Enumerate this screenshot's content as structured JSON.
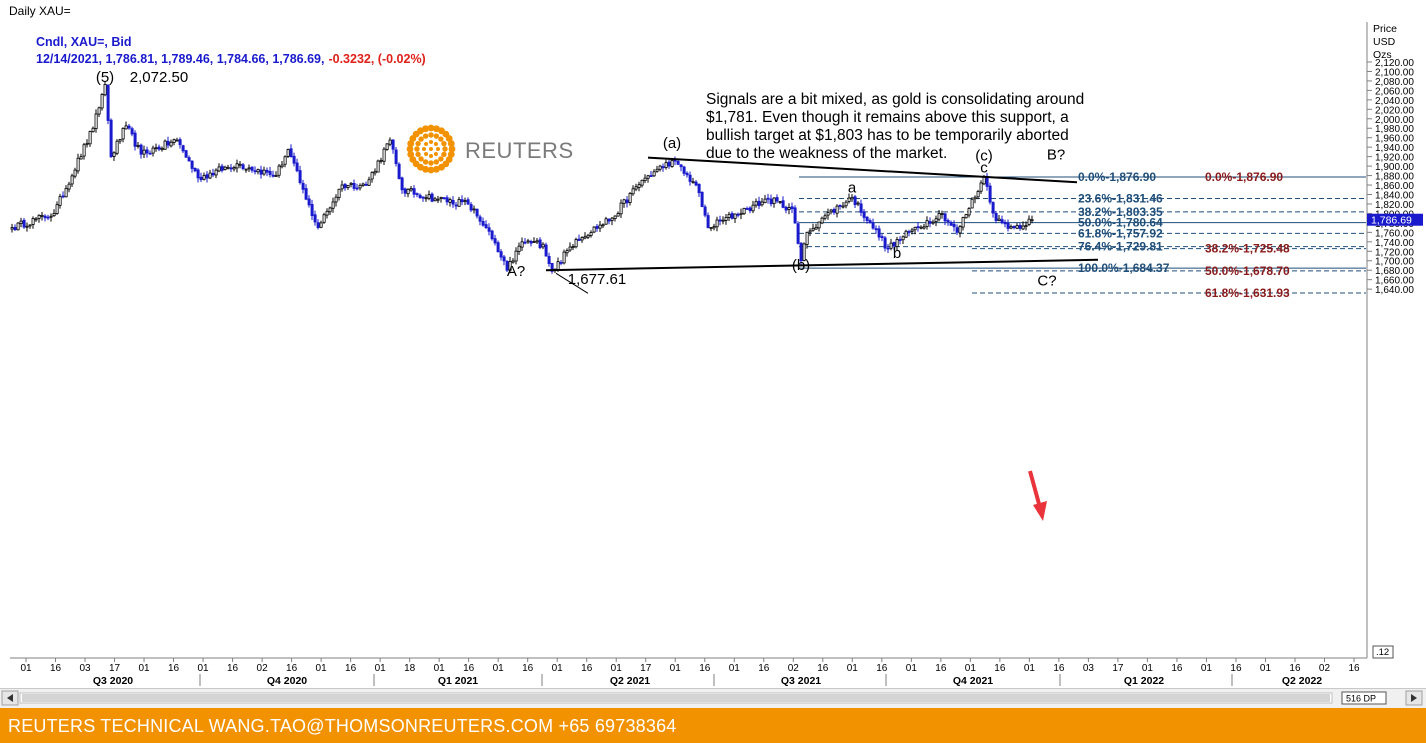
{
  "window": {
    "title": "Daily XAU="
  },
  "header": {
    "line1": "Cndl, XAU=, Bid",
    "line2_values": "12/14/2021, 1,786.81, 1,789.46, 1,784.66, 1,786.69,",
    "line2_change": "-0.3232, (-0.02%)"
  },
  "logo": {
    "text": "REUTERS"
  },
  "commentary": [
    "Signals are a bit mixed, as gold is consolidating around",
    "$1,781. Even though it remains above this support, a",
    "bullish target at $1,803 has to be temporarily aborted",
    "due to the weakness of the market."
  ],
  "axis": {
    "header": [
      "Price",
      "USD",
      "Ozs"
    ],
    "current_price_tag": "1,786.69",
    "zoom_tag": ".12",
    "scroll_tag": "516 DP"
  },
  "footer": {
    "text": "REUTERS TECHNICAL  WANG.TAO@THOMSONREUTERS.COM  +65 69738364"
  },
  "colors": {
    "up": "#000000",
    "down": "#1a1acd",
    "fib_blue": "#1f4e79",
    "fib_red": "#8b1a1a",
    "footer": "#f39200",
    "arrow": "#e8343a"
  },
  "chart_data": {
    "type": "candlestick",
    "instrument": "XAU=",
    "period": "Daily",
    "ylim": [
      1620,
      2130
    ],
    "y_ticks": [
      1640,
      1660,
      1680,
      1700,
      1720,
      1740,
      1760,
      1780,
      1800,
      1820,
      1840,
      1860,
      1880,
      1900,
      1920,
      1940,
      1960,
      1980,
      2000,
      2020,
      2040,
      2060,
      2080,
      2100,
      2120
    ],
    "y_tick_labels": [
      "1,640.00",
      "1,660.00",
      "1,680.00",
      "1,700.00",
      "1,720.00",
      "1,740.00",
      "1,760.00",
      "1,780.00",
      "1,800.00",
      "1,820.00",
      "1,840.00",
      "1,860.00",
      "1,880.00",
      "1,900.00",
      "1,920.00",
      "1,940.00",
      "1,960.00",
      "1,980.00",
      "2,000.00",
      "2,020.00",
      "2,040.00",
      "2,060.00",
      "2,080.00",
      "2,100.00",
      "2,120.00"
    ],
    "x_tick_labels": [
      "01",
      "16",
      "03",
      "17",
      "01",
      "16",
      "01",
      "16",
      "02",
      "16",
      "01",
      "16",
      "01",
      "18",
      "01",
      "16",
      "01",
      "16",
      "01",
      "16",
      "01",
      "17",
      "01",
      "16",
      "01",
      "16",
      "02",
      "16",
      "01",
      "16",
      "01",
      "16",
      "01",
      "16",
      "01",
      "16",
      "03",
      "17",
      "01",
      "16",
      "01",
      "16",
      "01",
      "16",
      "02",
      "16"
    ],
    "quarters": [
      "Q3 2020",
      "Q4 2020",
      "Q1 2021",
      "Q2 2021",
      "Q3 2021",
      "Q4 2021",
      "Q1 2022",
      "Q2 2022"
    ],
    "anchors": [
      {
        "d": 0,
        "p": 1770
      },
      {
        "d": 14,
        "p": 1800
      },
      {
        "d": 27,
        "p": 1980
      },
      {
        "d": 31,
        "p": 2072.5
      },
      {
        "d": 33,
        "p": 1920
      },
      {
        "d": 38,
        "p": 1985
      },
      {
        "d": 43,
        "p": 1925
      },
      {
        "d": 55,
        "p": 1955
      },
      {
        "d": 62,
        "p": 1875
      },
      {
        "d": 75,
        "p": 1905
      },
      {
        "d": 88,
        "p": 1880
      },
      {
        "d": 92,
        "p": 1935
      },
      {
        "d": 98,
        "p": 1830
      },
      {
        "d": 102,
        "p": 1770
      },
      {
        "d": 110,
        "p": 1860
      },
      {
        "d": 118,
        "p": 1860
      },
      {
        "d": 126,
        "p": 1955
      },
      {
        "d": 130,
        "p": 1850
      },
      {
        "d": 142,
        "p": 1830
      },
      {
        "d": 152,
        "p": 1820
      },
      {
        "d": 158,
        "p": 1770
      },
      {
        "d": 165,
        "p": 1680
      },
      {
        "d": 170,
        "p": 1740
      },
      {
        "d": 177,
        "p": 1735
      },
      {
        "d": 180,
        "p": 1677.61
      },
      {
        "d": 188,
        "p": 1745
      },
      {
        "d": 200,
        "p": 1790
      },
      {
        "d": 210,
        "p": 1870
      },
      {
        "d": 220,
        "p": 1912
      },
      {
        "d": 228,
        "p": 1860
      },
      {
        "d": 232,
        "p": 1770
      },
      {
        "d": 245,
        "p": 1810
      },
      {
        "d": 252,
        "p": 1830
      },
      {
        "d": 260,
        "p": 1810
      },
      {
        "d": 263,
        "p": 1700
      },
      {
        "d": 265,
        "p": 1760
      },
      {
        "d": 270,
        "p": 1790
      },
      {
        "d": 280,
        "p": 1834
      },
      {
        "d": 286,
        "p": 1780
      },
      {
        "d": 292,
        "p": 1725
      },
      {
        "d": 300,
        "p": 1765
      },
      {
        "d": 310,
        "p": 1800
      },
      {
        "d": 315,
        "p": 1760
      },
      {
        "d": 324,
        "p": 1876.9
      },
      {
        "d": 328,
        "p": 1785
      },
      {
        "d": 334,
        "p": 1770
      },
      {
        "d": 340,
        "p": 1786.69
      }
    ],
    "fib_left": [
      {
        "label": "0.0%",
        "value": 1876.9,
        "text": "1,876.90"
      },
      {
        "label": "23.6%",
        "value": 1831.46,
        "text": "1,831.46"
      },
      {
        "label": "38.2%",
        "value": 1803.35,
        "text": "1,803.35"
      },
      {
        "label": "50.0%",
        "value": 1780.64,
        "text": "1,780.64"
      },
      {
        "label": "61.8%",
        "value": 1757.92,
        "text": "1,757.92"
      },
      {
        "label": "76.4%",
        "value": 1729.81,
        "text": "1,729.81"
      },
      {
        "label": "100.0%",
        "value": 1684.37,
        "text": "1,684.37"
      }
    ],
    "fib_right": [
      {
        "label": "0.0%",
        "value": 1876.9,
        "text": "1,876.90"
      },
      {
        "label": "38.2%",
        "value": 1725.48,
        "text": "1,725.48"
      },
      {
        "label": "50.0%",
        "value": 1678.7,
        "text": "1,678.70"
      },
      {
        "label": "61.8%",
        "value": 1631.93,
        "text": "1,631.93"
      }
    ],
    "annotations": [
      {
        "text": "(5)",
        "d": 31,
        "p": 2078
      },
      {
        "text": "2,072.50",
        "d": 49,
        "p": 2078
      },
      {
        "text": "(a)",
        "d": 220,
        "p": 1938
      },
      {
        "text": "(c)",
        "d": 324,
        "p": 1912
      },
      {
        "text": "B?",
        "d": 348,
        "p": 1914
      },
      {
        "text": "c",
        "d": 324,
        "p": 1886
      },
      {
        "text": "a",
        "d": 280,
        "p": 1844
      },
      {
        "text": "b",
        "d": 295,
        "p": 1706
      },
      {
        "text": "(b)",
        "d": 263,
        "p": 1680
      },
      {
        "text": "A?",
        "d": 168,
        "p": 1668
      },
      {
        "text": "1,677.61",
        "d": 195,
        "p": 1651
      },
      {
        "text": "C?",
        "d": 345,
        "p": 1648
      }
    ],
    "trendlines": [
      {
        "name": "upper",
        "from": {
          "d": 212,
          "p": 1918
        },
        "to": {
          "d": 355,
          "p": 1866
        }
      },
      {
        "name": "lower",
        "from": {
          "d": 178,
          "p": 1680
        },
        "to": {
          "d": 362,
          "p": 1702
        }
      }
    ]
  }
}
